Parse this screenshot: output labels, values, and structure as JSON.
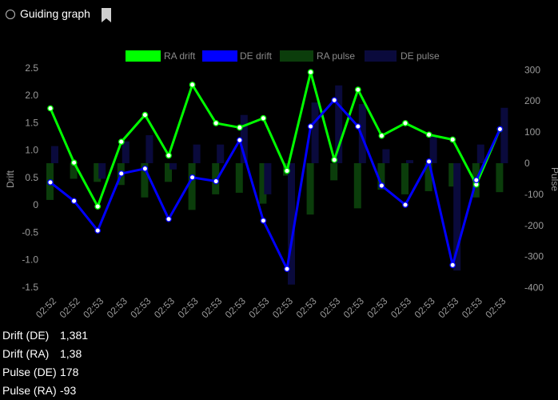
{
  "header": {
    "title": "Guiding graph",
    "bookmark_icon": "bookmark-icon",
    "radio_icon": "radio-icon"
  },
  "chart_data": {
    "type": "line",
    "title": "",
    "xlabel": "",
    "ylabel": "Drift",
    "y2label": "Pulse",
    "ylim": [
      -1.7,
      2.5
    ],
    "y2lim": [
      -430,
      300
    ],
    "yticks": [
      2.5,
      2,
      1.5,
      1,
      0.5,
      0,
      -0.5,
      -1,
      -1.5
    ],
    "yticklabels": [
      "2.5",
      "2.0",
      "1.5",
      "1.0",
      "0.5",
      "0",
      "-0.5",
      "-1.0",
      "-1.5"
    ],
    "y2ticks": [
      300,
      200,
      100,
      0,
      -100,
      -200,
      -300,
      -400
    ],
    "categories": [
      "02:52",
      "02:52",
      "02:53",
      "02:53",
      "02:53",
      "02:53",
      "02:53",
      "02:53",
      "02:53",
      "02:53",
      "02:53",
      "02:53",
      "02:53",
      "02:53",
      "02:53",
      "02:53",
      "02:53",
      "02:53",
      "02:53",
      "02:53"
    ],
    "legend_position": "top",
    "series": [
      {
        "name": "RA drift",
        "axis": "left",
        "kind": "line",
        "color": "#00ff00",
        "values": [
          1.76,
          0.77,
          -0.03,
          1.15,
          1.64,
          0.9,
          2.19,
          1.49,
          1.41,
          1.58,
          0.62,
          2.42,
          0.82,
          2.1,
          1.26,
          1.49,
          1.28,
          1.19,
          0.37,
          1.38
        ]
      },
      {
        "name": "DE drift",
        "axis": "left",
        "kind": "line",
        "color": "#0000ff",
        "values": [
          0.41,
          0.07,
          -0.47,
          0.57,
          0.66,
          -0.26,
          0.5,
          0.43,
          1.18,
          -0.29,
          -1.17,
          1.43,
          1.91,
          1.43,
          0.35,
          0.0,
          0.79,
          -1.1,
          0.45,
          1.381
        ]
      },
      {
        "name": "RA pulse",
        "axis": "right",
        "kind": "bar",
        "color": "#0b3d0b",
        "values": [
          -118,
          -50,
          -60,
          -70,
          -110,
          -60,
          -150,
          -100,
          -95,
          -130,
          -40,
          -165,
          -55,
          -145,
          -85,
          -100,
          -90,
          -75,
          -110,
          -93
        ]
      },
      {
        "name": "DE pulse",
        "axis": "right",
        "kind": "bar",
        "color": "#0a0a3c",
        "values": [
          55,
          0,
          -50,
          70,
          90,
          -20,
          60,
          60,
          155,
          -100,
          -390,
          195,
          250,
          190,
          45,
          10,
          90,
          -345,
          60,
          178
        ]
      }
    ]
  },
  "stats": [
    {
      "label": "Drift (DE)",
      "value": "1,381"
    },
    {
      "label": "Drift (RA)",
      "value": "1,38"
    },
    {
      "label": "Pulse (DE)",
      "value": "178"
    },
    {
      "label": "Pulse (RA)",
      "value": "-93"
    }
  ]
}
